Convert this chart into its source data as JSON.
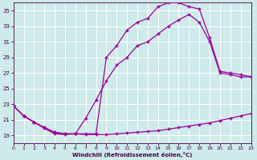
{
  "xlabel": "Windchill (Refroidissement éolien,°C)",
  "bg_color": "#ceeaea",
  "line_color": "#990099",
  "grid_color": "#ffffff",
  "xmin": 0,
  "xmax": 23,
  "ymin": 18,
  "ymax": 36,
  "yticks": [
    19,
    21,
    23,
    25,
    27,
    29,
    31,
    33,
    35
  ],
  "xticks": [
    0,
    1,
    2,
    3,
    4,
    5,
    6,
    7,
    8,
    9,
    10,
    11,
    12,
    13,
    14,
    15,
    16,
    17,
    18,
    19,
    20,
    21,
    22,
    23
  ],
  "line1_x": [
    0,
    1,
    2,
    3,
    4,
    5,
    6,
    7,
    8,
    9,
    10,
    11,
    12,
    13,
    14,
    15,
    16,
    17,
    18,
    19,
    20,
    21,
    22,
    23
  ],
  "line1_y": [
    22.8,
    21.5,
    20.7,
    19.9,
    19.2,
    19.1,
    19.2,
    19.1,
    19.1,
    19.1,
    19.2,
    19.3,
    19.4,
    19.5,
    19.6,
    19.8,
    20.0,
    20.2,
    20.4,
    20.6,
    20.9,
    21.2,
    21.5,
    21.8
  ],
  "line2_x": [
    0,
    1,
    2,
    3,
    4,
    5,
    6,
    7,
    8,
    9,
    10,
    11,
    12,
    13,
    14,
    15,
    16,
    17,
    18,
    19,
    20,
    21,
    22,
    23
  ],
  "line2_y": [
    22.8,
    21.5,
    20.7,
    20.0,
    19.4,
    19.2,
    19.2,
    21.2,
    23.5,
    26.0,
    28.0,
    29.0,
    30.5,
    31.0,
    32.0,
    33.0,
    33.8,
    34.5,
    33.5,
    31.0,
    27.0,
    26.8,
    26.5,
    26.5
  ],
  "line3_x": [
    0,
    1,
    2,
    3,
    4,
    5,
    6,
    7,
    8,
    9,
    10,
    11,
    12,
    13,
    14,
    15,
    16,
    17,
    18,
    19,
    20,
    21,
    22,
    23
  ],
  "line3_y": [
    22.8,
    21.5,
    20.7,
    20.0,
    19.4,
    19.2,
    19.2,
    19.2,
    19.2,
    29.0,
    30.5,
    32.5,
    33.5,
    34.0,
    35.5,
    36.0,
    36.0,
    35.5,
    35.2,
    31.5,
    27.2,
    27.0,
    26.8,
    26.5
  ]
}
